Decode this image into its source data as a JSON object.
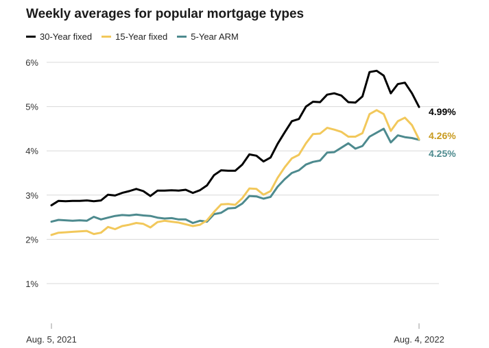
{
  "chart_data": {
    "type": "line",
    "title": "Weekly averages for popular mortgage types",
    "x_start_label": "Aug. 5, 2021",
    "x_end_label": "Aug. 4, 2022",
    "y_ticks": [
      "1%",
      "2%",
      "3%",
      "4%",
      "5%",
      "6%"
    ],
    "ylim": [
      0,
      6
    ],
    "grid": true,
    "legend_position": "top-left",
    "series": [
      {
        "name": "30-Year fixed",
        "color": "#000000",
        "end_label": "4.99%",
        "values": [
          2.77,
          2.87,
          2.86,
          2.87,
          2.87,
          2.88,
          2.86,
          2.88,
          3.01,
          2.99,
          3.05,
          3.09,
          3.14,
          3.09,
          2.98,
          3.1,
          3.1,
          3.11,
          3.1,
          3.12,
          3.05,
          3.11,
          3.22,
          3.45,
          3.56,
          3.55,
          3.55,
          3.69,
          3.92,
          3.89,
          3.76,
          3.85,
          4.16,
          4.42,
          4.67,
          4.72,
          5.0,
          5.11,
          5.1,
          5.27,
          5.3,
          5.25,
          5.1,
          5.09,
          5.23,
          5.78,
          5.81,
          5.7,
          5.3,
          5.51,
          5.54,
          5.3,
          4.99
        ]
      },
      {
        "name": "15-Year fixed",
        "color": "#f2c85b",
        "end_label": "4.26%",
        "values": [
          2.1,
          2.15,
          2.16,
          2.17,
          2.18,
          2.19,
          2.12,
          2.15,
          2.28,
          2.23,
          2.3,
          2.33,
          2.37,
          2.35,
          2.27,
          2.39,
          2.42,
          2.4,
          2.38,
          2.34,
          2.3,
          2.33,
          2.43,
          2.62,
          2.79,
          2.8,
          2.78,
          2.93,
          3.15,
          3.14,
          3.01,
          3.09,
          3.39,
          3.63,
          3.83,
          3.91,
          4.17,
          4.38,
          4.39,
          4.52,
          4.48,
          4.43,
          4.32,
          4.32,
          4.4,
          4.83,
          4.92,
          4.83,
          4.45,
          4.67,
          4.75,
          4.58,
          4.26
        ]
      },
      {
        "name": "5-Year ARM",
        "color": "#4d8a8e",
        "end_label": "4.25%",
        "values": [
          2.4,
          2.44,
          2.43,
          2.42,
          2.43,
          2.42,
          2.51,
          2.45,
          2.49,
          2.53,
          2.55,
          2.54,
          2.56,
          2.54,
          2.53,
          2.49,
          2.47,
          2.48,
          2.45,
          2.45,
          2.37,
          2.42,
          2.4,
          2.57,
          2.6,
          2.7,
          2.71,
          2.81,
          2.98,
          2.97,
          2.92,
          2.96,
          3.19,
          3.36,
          3.5,
          3.56,
          3.69,
          3.75,
          3.78,
          3.96,
          3.97,
          4.07,
          4.17,
          4.05,
          4.11,
          4.32,
          4.41,
          4.5,
          4.19,
          4.35,
          4.31,
          4.29,
          4.25
        ]
      }
    ]
  }
}
